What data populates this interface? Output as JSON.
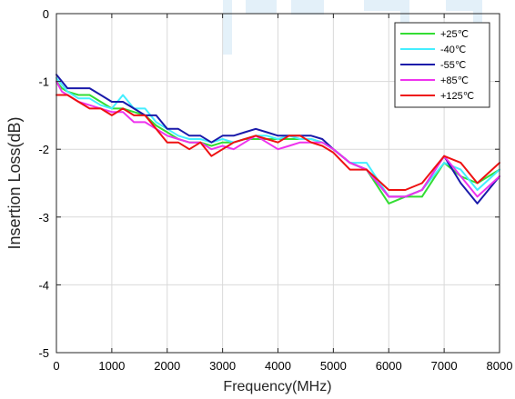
{
  "chart_data": {
    "type": "line",
    "xlabel": "Frequency(MHz)",
    "ylabel": "Insertion Loss(dB)",
    "xlim": [
      0,
      8000
    ],
    "ylim": [
      -5,
      0
    ],
    "xticks": [
      0,
      1000,
      2000,
      3000,
      4000,
      5000,
      6000,
      7000,
      8000
    ],
    "yticks": [
      0,
      -1,
      -2,
      -3,
      -4,
      -5
    ],
    "xtick_labels": [
      "0",
      "1000",
      "2000",
      "3000",
      "4000",
      "5000",
      "6000",
      "7000",
      "8000"
    ],
    "ytick_labels": [
      "0",
      "-1",
      "-2",
      "-3",
      "-4",
      "-5"
    ],
    "grid": true,
    "legend_position": "top-right",
    "x": [
      0,
      100,
      200,
      400,
      600,
      800,
      1000,
      1200,
      1400,
      1600,
      1800,
      2000,
      2200,
      2400,
      2600,
      2800,
      3000,
      3200,
      3400,
      3600,
      3800,
      4000,
      4200,
      4400,
      4600,
      4800,
      5000,
      5300,
      5600,
      6000,
      6300,
      6600,
      7000,
      7300,
      7600,
      8000
    ],
    "series": [
      {
        "name": "+25℃",
        "color": "#33dd33",
        "values": [
          -1.0,
          -1.1,
          -1.15,
          -1.2,
          -1.2,
          -1.3,
          -1.4,
          -1.4,
          -1.45,
          -1.5,
          -1.65,
          -1.75,
          -1.85,
          -1.9,
          -1.9,
          -1.95,
          -1.9,
          -1.9,
          -1.85,
          -1.85,
          -1.85,
          -1.85,
          -1.85,
          -1.85,
          -1.85,
          -1.9,
          -2.0,
          -2.2,
          -2.3,
          -2.8,
          -2.7,
          -2.7,
          -2.2,
          -2.4,
          -2.5,
          -2.3
        ]
      },
      {
        "name": "-40℃",
        "color": "#44eeff",
        "values": [
          -0.95,
          -1.05,
          -1.15,
          -1.25,
          -1.25,
          -1.35,
          -1.4,
          -1.2,
          -1.4,
          -1.4,
          -1.6,
          -1.7,
          -1.8,
          -1.85,
          -1.85,
          -1.9,
          -1.85,
          -1.9,
          -1.85,
          -1.8,
          -1.8,
          -1.85,
          -1.8,
          -1.85,
          -1.85,
          -1.9,
          -2.0,
          -2.2,
          -2.2,
          -2.7,
          -2.7,
          -2.6,
          -2.2,
          -2.3,
          -2.6,
          -2.3
        ]
      },
      {
        "name": "-55℃",
        "color": "#1a1aaa",
        "values": [
          -0.9,
          -1.0,
          -1.1,
          -1.1,
          -1.1,
          -1.2,
          -1.3,
          -1.3,
          -1.4,
          -1.5,
          -1.5,
          -1.7,
          -1.7,
          -1.8,
          -1.8,
          -1.9,
          -1.8,
          -1.8,
          -1.75,
          -1.7,
          -1.75,
          -1.8,
          -1.8,
          -1.8,
          -1.8,
          -1.85,
          -2.0,
          -2.2,
          -2.3,
          -2.7,
          -2.7,
          -2.6,
          -2.1,
          -2.5,
          -2.8,
          -2.4
        ]
      },
      {
        "name": "+85℃",
        "color": "#ee33ee",
        "values": [
          -1.0,
          -1.15,
          -1.2,
          -1.3,
          -1.35,
          -1.4,
          -1.45,
          -1.45,
          -1.6,
          -1.6,
          -1.7,
          -1.8,
          -1.85,
          -1.9,
          -1.9,
          -2.0,
          -1.95,
          -2.0,
          -1.9,
          -1.8,
          -1.9,
          -2.0,
          -1.95,
          -1.9,
          -1.9,
          -1.9,
          -2.0,
          -2.2,
          -2.3,
          -2.7,
          -2.7,
          -2.6,
          -2.1,
          -2.4,
          -2.7,
          -2.4
        ]
      },
      {
        "name": "+125℃",
        "color": "#ee1111",
        "values": [
          -1.2,
          -1.2,
          -1.2,
          -1.3,
          -1.4,
          -1.4,
          -1.5,
          -1.4,
          -1.5,
          -1.5,
          -1.7,
          -1.9,
          -1.9,
          -2.0,
          -1.9,
          -2.1,
          -2.0,
          -1.9,
          -1.85,
          -1.8,
          -1.85,
          -1.9,
          -1.8,
          -1.8,
          -1.9,
          -1.95,
          -2.05,
          -2.3,
          -2.3,
          -2.6,
          -2.6,
          -2.5,
          -2.1,
          -2.2,
          -2.5,
          -2.2
        ]
      }
    ]
  }
}
